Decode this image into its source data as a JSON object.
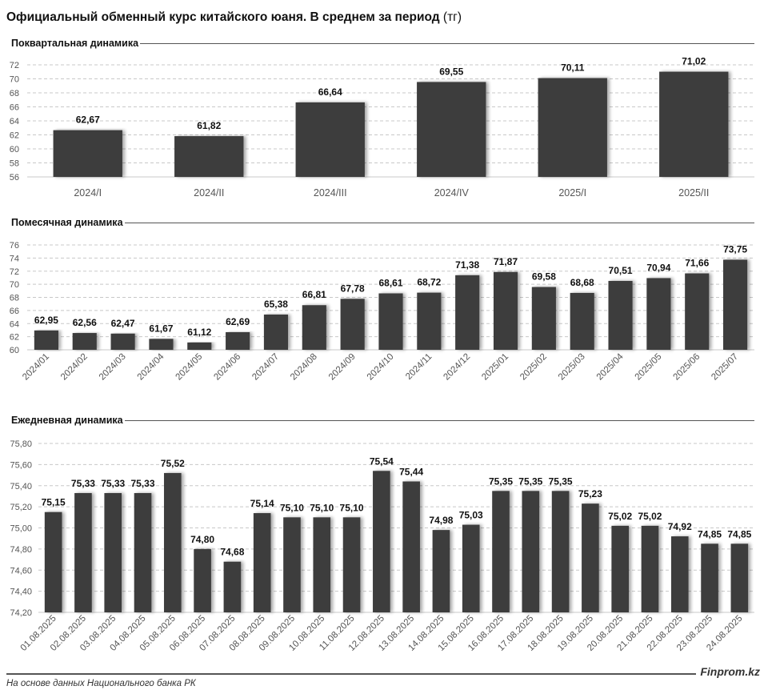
{
  "header": {
    "title": "Официальный обменный курс китайского юаня. В среднем за период",
    "unit": "(тг)"
  },
  "footer": {
    "source": "На основе данных Национального банка РК",
    "brand": "Finprom.kz"
  },
  "colors": {
    "bar": "#3d3d3d",
    "grid": "#c8c8c8",
    "axis_text": "#555555"
  },
  "chart_data": [
    {
      "id": "quarterly",
      "type": "bar",
      "title": "Поквартальная динамика",
      "xlabel": "",
      "ylabel": "",
      "ylim": [
        56,
        72
      ],
      "yticks": [
        56,
        58,
        60,
        62,
        64,
        66,
        68,
        70,
        72
      ],
      "ytick_labels": [
        "56",
        "58",
        "60",
        "62",
        "64",
        "66",
        "68",
        "70",
        "72"
      ],
      "grid": true,
      "categories": [
        "2024/I",
        "2024/II",
        "2024/III",
        "2024/IV",
        "2025/I",
        "2025/II"
      ],
      "values": [
        62.67,
        61.82,
        66.64,
        69.55,
        70.11,
        71.02
      ],
      "value_labels": [
        "62,67",
        "61,82",
        "66,64",
        "69,55",
        "70,11",
        "71,02"
      ]
    },
    {
      "id": "monthly",
      "type": "bar",
      "title": "Помесячная динамика",
      "xlabel": "",
      "ylabel": "",
      "ylim": [
        60,
        76
      ],
      "yticks": [
        60,
        62,
        64,
        66,
        68,
        70,
        72,
        74,
        76
      ],
      "ytick_labels": [
        "60",
        "62",
        "64",
        "66",
        "68",
        "70",
        "72",
        "74",
        "76"
      ],
      "grid": true,
      "categories": [
        "2024/01",
        "2024/02",
        "2024/03",
        "2024/04",
        "2024/05",
        "2024/06",
        "2024/07",
        "2024/08",
        "2024/09",
        "2024/10",
        "2024/11",
        "2024/12",
        "2025/01",
        "2025/02",
        "2025/03",
        "2025/04",
        "2025/05",
        "2025/06",
        "2025/07"
      ],
      "values": [
        62.95,
        62.56,
        62.47,
        61.67,
        61.12,
        62.69,
        65.38,
        66.81,
        67.78,
        68.61,
        68.72,
        71.38,
        71.87,
        69.58,
        68.68,
        70.51,
        70.94,
        71.66,
        73.75
      ],
      "value_labels": [
        "62,95",
        "62,56",
        "62,47",
        "61,67",
        "61,12",
        "62,69",
        "65,38",
        "66,81",
        "67,78",
        "68,61",
        "68,72",
        "71,38",
        "71,87",
        "69,58",
        "68,68",
        "70,51",
        "70,94",
        "71,66",
        "73,75"
      ]
    },
    {
      "id": "daily",
      "type": "bar",
      "title": "Ежедневная динамика",
      "xlabel": "",
      "ylabel": "",
      "ylim": [
        74.2,
        75.8
      ],
      "yticks": [
        74.2,
        74.4,
        74.6,
        74.8,
        75.0,
        75.2,
        75.4,
        75.6,
        75.8
      ],
      "ytick_labels": [
        "74,20",
        "74,40",
        "74,60",
        "74,80",
        "75,00",
        "75,20",
        "75,40",
        "75,60",
        "75,80"
      ],
      "grid": true,
      "categories": [
        "01.08.2025",
        "02.08.2025",
        "03.08.2025",
        "04.08.2025",
        "05.08.2025",
        "06.08.2025",
        "07.08.2025",
        "08.08.2025",
        "09.08.2025",
        "10.08.2025",
        "11.08.2025",
        "12.08.2025",
        "13.08.2025",
        "14.08.2025",
        "15.08.2025",
        "16.08.2025",
        "17.08.2025",
        "18.08.2025",
        "19.08.2025",
        "20.08.2025",
        "21.08.2025",
        "22.08.2025",
        "23.08.2025",
        "24.08.2025"
      ],
      "values": [
        75.15,
        75.33,
        75.33,
        75.33,
        75.52,
        74.8,
        74.68,
        75.14,
        75.1,
        75.1,
        75.1,
        75.54,
        75.44,
        74.98,
        75.03,
        75.35,
        75.35,
        75.35,
        75.23,
        75.02,
        75.02,
        74.92,
        74.85,
        74.85
      ],
      "value_labels": [
        "75,15",
        "75,33",
        "75,33",
        "75,33",
        "75,52",
        "74,80",
        "74,68",
        "75,14",
        "75,10",
        "75,10",
        "75,10",
        "75,54",
        "75,44",
        "74,98",
        "75,03",
        "75,35",
        "75,35",
        "75,35",
        "75,23",
        "75,02",
        "75,02",
        "74,92",
        "74,85",
        "74,85"
      ]
    }
  ]
}
